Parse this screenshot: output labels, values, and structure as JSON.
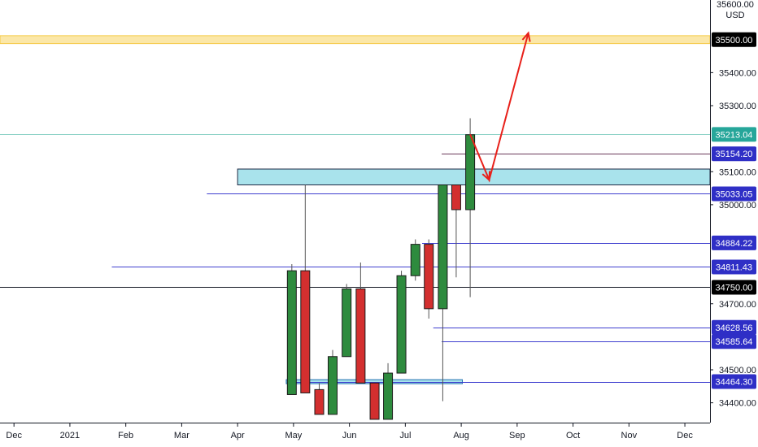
{
  "chart_data": {
    "type": "candlestick",
    "currency": "USD",
    "top_tick_partial": "35600.00",
    "y_ticks": [
      "35400.00",
      "35300.00",
      "35100.00",
      "35000.00",
      "34700.00",
      "34500.00",
      "34400.00"
    ],
    "ylim": [
      34340,
      35620
    ],
    "x_ticks": [
      "Dec",
      "2021",
      "Feb",
      "Mar",
      "Apr",
      "May",
      "Jun",
      "Jul",
      "Aug",
      "Sep",
      "Oct",
      "Nov",
      "Dec"
    ],
    "x_tick_times": [
      -1,
      0,
      1,
      2,
      3,
      4,
      5,
      6,
      7,
      8,
      9,
      10,
      11
    ],
    "xlim": [
      -1.25,
      11.45
    ],
    "candles": [
      {
        "t": 3.97,
        "o": 34425,
        "h": 34820,
        "l": 34425,
        "c": 34800
      },
      {
        "t": 4.21,
        "o": 34800,
        "h": 35060,
        "l": 34430,
        "c": 34430
      },
      {
        "t": 4.46,
        "o": 34440,
        "h": 34460,
        "l": 34365,
        "c": 34365
      },
      {
        "t": 4.7,
        "o": 34365,
        "h": 34560,
        "l": 34365,
        "c": 34540
      },
      {
        "t": 4.95,
        "o": 34540,
        "h": 34760,
        "l": 34540,
        "c": 34745
      },
      {
        "t": 5.2,
        "o": 34745,
        "h": 34825,
        "l": 34460,
        "c": 34460
      },
      {
        "t": 5.45,
        "o": 34460,
        "h": 34460,
        "l": 34350,
        "c": 34350
      },
      {
        "t": 5.69,
        "o": 34350,
        "h": 34520,
        "l": 34350,
        "c": 34490
      },
      {
        "t": 5.93,
        "o": 34490,
        "h": 34800,
        "l": 34490,
        "c": 34785
      },
      {
        "t": 6.18,
        "o": 34785,
        "h": 34895,
        "l": 34770,
        "c": 34880
      },
      {
        "t": 6.42,
        "o": 34880,
        "h": 34895,
        "l": 34655,
        "c": 34685
      },
      {
        "t": 6.67,
        "o": 34685,
        "h": 35060,
        "l": 34405,
        "c": 35060
      },
      {
        "t": 6.91,
        "o": 35060,
        "h": 35060,
        "l": 34780,
        "c": 34985
      },
      {
        "t": 7.16,
        "o": 34985,
        "h": 35262,
        "l": 34720,
        "c": 35212
      }
    ],
    "level_lines": [
      {
        "value": 35500.0,
        "label": "35500.00",
        "badge": "#000000",
        "style": "zone-gold"
      },
      {
        "value": 35213.04,
        "label": "35213.04",
        "badge": "#26a69a",
        "style": "teal-thin"
      },
      {
        "value": 35154.2,
        "label": "35154.20",
        "badge": "#2f2fc6",
        "style": "ray-dark",
        "from_t": 6.65
      },
      {
        "value": 35033.05,
        "label": "35033.05",
        "badge": "#2f2fc6",
        "style": "ray-blue",
        "from_t": 2.45
      },
      {
        "value": 34884.22,
        "label": "34884.22",
        "badge": "#2f2fc6",
        "style": "ray-blue",
        "from_t": 6.3
      },
      {
        "value": 34811.43,
        "label": "34811.43",
        "badge": "#2f2fc6",
        "style": "ray-blue",
        "from_t": 0.75
      },
      {
        "value": 34750.0,
        "label": "34750.00",
        "badge": "#000000",
        "style": "hline-black"
      },
      {
        "value": 34628.56,
        "label": "34628.56",
        "badge": "#2f2fc6",
        "style": "ray-blue",
        "from_t": 6.5
      },
      {
        "value": 34585.64,
        "label": "34585.64",
        "badge": "#2f2fc6",
        "style": "ray-blue",
        "from_t": 6.65
      },
      {
        "value": 34464.3,
        "label": "34464.30",
        "badge": "#2f2fc6",
        "style": "ray-blue",
        "from_t": 3.9
      }
    ],
    "zones": [
      {
        "t0": -1.25,
        "t1": 11.45,
        "y0": 35488,
        "y1": 35512,
        "fill": "#fbe7a8",
        "stroke": "#f5c945"
      },
      {
        "t0": 3.0,
        "t1": 11.45,
        "y0": 35060,
        "y1": 35108,
        "fill": "#a9e3ec",
        "stroke": "#1f2a44"
      },
      {
        "t0": 3.87,
        "t1": 7.02,
        "y0": 34458,
        "y1": 34470,
        "fill": "#a9e3ec",
        "stroke": "#1f6fb0"
      }
    ],
    "arrow_path": [
      [
        7.16,
        35213
      ],
      [
        7.5,
        35075
      ],
      [
        8.2,
        35520
      ]
    ],
    "colors": {
      "up": "#2e8b3e",
      "down": "#d32f2f",
      "arrow": "#e8201a",
      "axis": "#131722",
      "grid_border": "#b2b5be"
    }
  }
}
